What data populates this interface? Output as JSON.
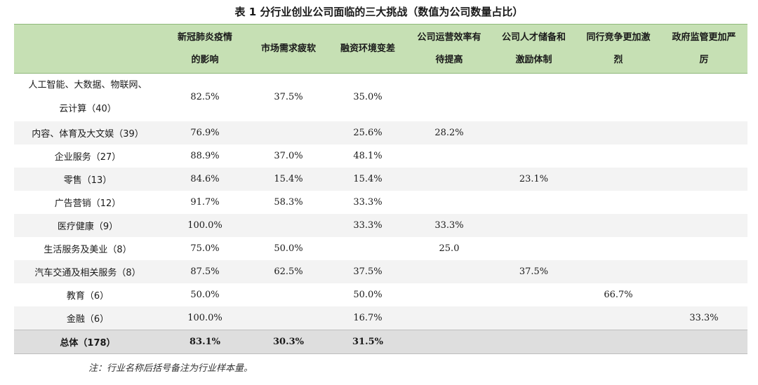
{
  "title": "表 1  分行业创业公司面临的三大挑战（数值为公司数量占比）",
  "columns": [
    "",
    "新冠肺炎疫情的影响",
    "市场需求疲软",
    "融资环境变差",
    "公司运营效率有待提高",
    "公司人才储备和激励体制",
    "同行竞争更加激烈",
    "政府监管更加严厉"
  ],
  "rows": [
    [
      "人工智能、大数据、物联网、云计算（40）",
      "82.5%",
      "37.5%",
      "35.0%",
      "",
      "",
      "",
      ""
    ],
    [
      "内容、体育及大文娱（39）",
      "76.9%",
      "",
      "25.6%",
      "28.2%",
      "",
      "",
      ""
    ],
    [
      "企业服务（27）",
      "88.9%",
      "37.0%",
      "48.1%",
      "",
      "",
      "",
      ""
    ],
    [
      "零售（13）",
      "84.6%",
      "15.4%",
      "15.4%",
      "",
      "23.1%",
      "",
      ""
    ],
    [
      "广告营销（12）",
      "91.7%",
      "58.3%",
      "33.3%",
      "",
      "",
      "",
      ""
    ],
    [
      "医疗健康（9）",
      "100.0%",
      "",
      "33.3%",
      "33.3%",
      "",
      "",
      ""
    ],
    [
      "生活服务及美业（8）",
      "75.0%",
      "50.0%",
      "",
      "25.0",
      "",
      "",
      ""
    ],
    [
      "汽车交通及相关服务（8）",
      "87.5%",
      "62.5%",
      "37.5%",
      "",
      "37.5%",
      "",
      ""
    ],
    [
      "教育（6）",
      "50.0%",
      "",
      "50.0%",
      "",
      "",
      "66.7%",
      ""
    ],
    [
      "金融（6）",
      "100.0%",
      "",
      "16.7%",
      "",
      "",
      "",
      "33.3%"
    ]
  ],
  "total": [
    "总体（178）",
    "83.1%",
    "30.3%",
    "31.5%",
    "",
    "",
    "",
    ""
  ],
  "note": "注：行业名称后括号备注为行业样本量。"
}
